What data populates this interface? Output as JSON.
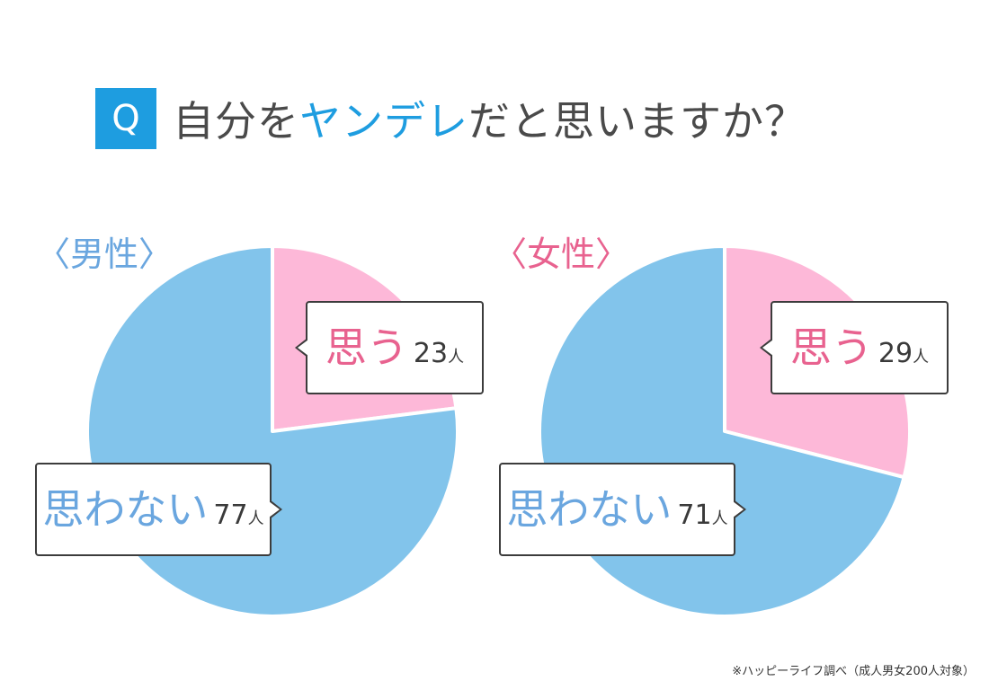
{
  "title": {
    "badge": "Q",
    "prefix": "自分を",
    "highlight": "ヤンデレ",
    "suffix": "だと思いますか？"
  },
  "colors": {
    "yes": "#fdb8d8",
    "no": "#82c4eb",
    "accent": "#1e9de0",
    "male_label": "#6aa6df",
    "female_label": "#e8628f"
  },
  "chart_data": [
    {
      "type": "pie",
      "title": "〈男性〉",
      "slices": [
        {
          "label": "思う",
          "value": 23,
          "unit": "人"
        },
        {
          "label": "思わない",
          "value": 77,
          "unit": "人"
        }
      ]
    },
    {
      "type": "pie",
      "title": "〈女性〉",
      "slices": [
        {
          "label": "思う",
          "value": 29,
          "unit": "人"
        },
        {
          "label": "思わない",
          "value": 71,
          "unit": "人"
        }
      ]
    }
  ],
  "source_note": "※ハッピーライフ調べ（成人男女200人対象）"
}
